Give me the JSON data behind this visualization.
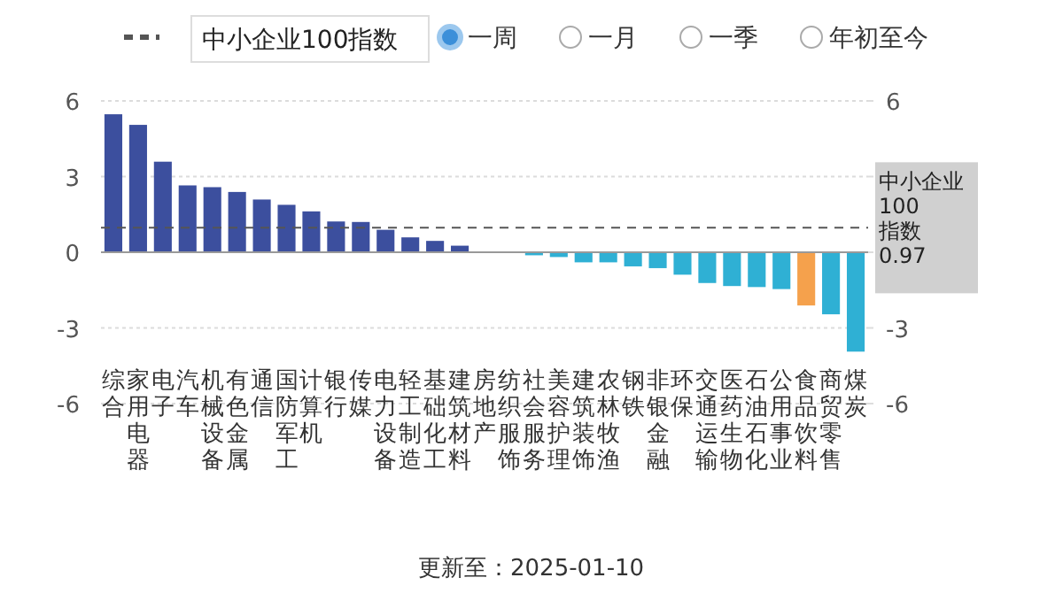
{
  "chart_data": {
    "type": "bar",
    "categories": [
      "综合",
      "家用电器",
      "电子",
      "汽车",
      "机械设备",
      "有色金属",
      "通信",
      "国防军工",
      "计算机",
      "银行",
      "传媒",
      "电力设备",
      "轻工制造",
      "基础化工",
      "建筑材料",
      "房地产",
      "纺织服饰",
      "社会服务",
      "美容护理",
      "建筑装饰",
      "农林牧渔",
      "钢铁",
      "非银金融",
      "环保",
      "交通运输",
      "医药生物",
      "石油石化",
      "公用事业",
      "食品饮料",
      "商贸零售",
      "煤炭"
    ],
    "values": [
      5.47,
      5.05,
      3.59,
      2.65,
      2.58,
      2.39,
      2.09,
      1.88,
      1.62,
      1.22,
      1.2,
      0.89,
      0.59,
      0.45,
      0.26,
      0,
      0,
      -0.12,
      -0.19,
      -0.4,
      -0.4,
      -0.56,
      -0.63,
      -0.89,
      -1.22,
      -1.34,
      -1.38,
      -1.46,
      -2.11,
      -2.46,
      -3.94
    ],
    "colors": [
      "#3c4f9e",
      "#3c4f9e",
      "#3c4f9e",
      "#3c4f9e",
      "#3c4f9e",
      "#3c4f9e",
      "#3c4f9e",
      "#3c4f9e",
      "#3c4f9e",
      "#3c4f9e",
      "#3c4f9e",
      "#3c4f9e",
      "#3c4f9e",
      "#3c4f9e",
      "#3c4f9e",
      "#3c4f9e",
      "#3c4f9e",
      "#2fb0d4",
      "#2fb0d4",
      "#2fb0d4",
      "#2fb0d4",
      "#2fb0d4",
      "#2fb0d4",
      "#2fb0d4",
      "#2fb0d4",
      "#2fb0d4",
      "#2fb0d4",
      "#2fb0d4",
      "#f5a14c",
      "#2fb0d4",
      "#2fb0d4"
    ],
    "ylim": [
      -6,
      6
    ],
    "yticks": [
      6,
      3,
      0,
      -3,
      -6
    ],
    "y2lim": [
      -6,
      6
    ],
    "y2ticks": [
      6,
      {
        "value": 3,
        "label": null
      },
      {
        "value": 0,
        "label": null
      },
      -3,
      -6
    ],
    "grid": "y",
    "ref_lines": [
      {
        "axis": "y2",
        "value": 0.97,
        "label": "中小企业100指数",
        "color": "#555555",
        "line_style": "dashed"
      }
    ],
    "legend": "top",
    "annotations": [
      "一周",
      "一月",
      "一季",
      "年初至今",
      "更新至：2025-01-10",
      "0.97"
    ]
  }
}
